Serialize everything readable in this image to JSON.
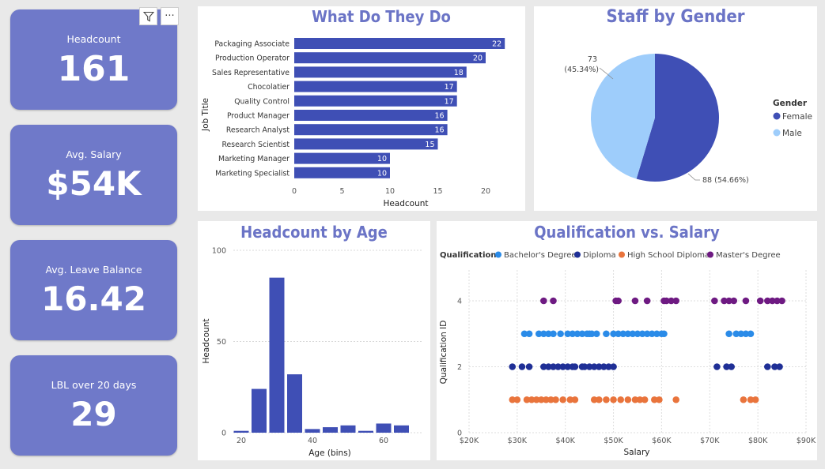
{
  "kpis": [
    {
      "label": "Headcount",
      "value": "161"
    },
    {
      "label": "Avg. Salary",
      "value": "$54K"
    },
    {
      "label": "Avg. Leave Balance",
      "value": "16.42"
    },
    {
      "label": "LBL over 20 days",
      "value": "29"
    }
  ],
  "toolbar": {
    "filter_icon": "filter-icon",
    "more_icon": "more-options-icon",
    "more_glyph": "···"
  },
  "colors": {
    "bar": "#3f4fb5",
    "female": "#3f4fb5",
    "male": "#9ecdfb",
    "bachelor": "#2a8be8",
    "diploma": "#1f2f96",
    "highschool": "#e9743c",
    "master": "#6e1a82",
    "title": "#6b74c6"
  },
  "chart_data": [
    {
      "type": "bar",
      "orientation": "horizontal",
      "title": "What Do They Do",
      "xlabel": "Headcount",
      "ylabel": "Job Title",
      "xlim": [
        0,
        22
      ],
      "xticks": [
        "0",
        "5",
        "10",
        "15",
        "20"
      ],
      "categories": [
        "Packaging Associate",
        "Production Operator",
        "Sales Representative",
        "Chocolatier",
        "Quality Control",
        "Product Manager",
        "Research Analyst",
        "Research Scientist",
        "Marketing Manager",
        "Marketing Specialist"
      ],
      "values": [
        22,
        20,
        18,
        17,
        17,
        16,
        16,
        15,
        10,
        10
      ]
    },
    {
      "type": "pie",
      "title": "Staff by Gender",
      "legend_title": "Gender",
      "legend_position": "right",
      "slices": [
        {
          "label": "Female",
          "value": 88,
          "display": "88 (54.66%)"
        },
        {
          "label": "Male",
          "value": 73,
          "display_count": "73",
          "display_pct": "(45.34%)"
        }
      ]
    },
    {
      "type": "bar",
      "title": "Headcount by Age",
      "xlabel": "Age (bins)",
      "ylabel": "Headcount",
      "ylim": [
        0,
        100
      ],
      "yticks": [
        "0",
        "50",
        "100"
      ],
      "xticks": [
        "20",
        "40",
        "60"
      ],
      "bin_width": 5,
      "bins": [
        20,
        25,
        30,
        35,
        40,
        45,
        50,
        55,
        60,
        65
      ],
      "values": [
        1,
        24,
        85,
        32,
        2,
        3,
        4,
        1,
        5,
        4
      ]
    },
    {
      "type": "scatter",
      "title": "Qualification vs. Salary",
      "xlabel": "Salary",
      "ylabel": "Qualification ID",
      "legend_title": "Qualification",
      "legend_position": "top-left",
      "xlim": [
        20000,
        90000
      ],
      "ylim": [
        0,
        4.9
      ],
      "xticks": [
        "$20K",
        "$30K",
        "$40K",
        "$50K",
        "$60K",
        "$70K",
        "$80K",
        "$90K"
      ],
      "yticks": [
        "0",
        "2",
        "4"
      ],
      "series": [
        {
          "name": "Bachelor's Degree",
          "y": 3,
          "x": [
            31500,
            32500,
            34500,
            35500,
            36500,
            37500,
            39000,
            40500,
            41500,
            42500,
            43500,
            44500,
            45000,
            45500,
            46500,
            48500,
            50000,
            51000,
            52000,
            53000,
            54000,
            55000,
            56000,
            57000,
            58000,
            59000,
            60000,
            60500,
            74000,
            75500,
            76500,
            77500,
            78500
          ]
        },
        {
          "name": "Diploma",
          "y": 2,
          "x": [
            29000,
            31000,
            32500,
            35500,
            36500,
            37500,
            38500,
            39500,
            40500,
            41500,
            42000,
            43500,
            44000,
            45000,
            46000,
            47000,
            48000,
            49000,
            50000,
            71500,
            73500,
            74500,
            82000,
            83500,
            84500
          ]
        },
        {
          "name": "High School Diploma",
          "y": 1,
          "x": [
            29000,
            30000,
            32000,
            33000,
            34000,
            35000,
            36000,
            37000,
            38000,
            39500,
            41000,
            42000,
            46000,
            47000,
            48500,
            50000,
            51500,
            53000,
            54500,
            55500,
            56500,
            58500,
            59500,
            63000,
            77000,
            78500,
            79500
          ]
        },
        {
          "name": "Master's Degree",
          "y": 4,
          "x": [
            35500,
            37500,
            50500,
            51000,
            54500,
            57000,
            60500,
            61000,
            62000,
            63000,
            71000,
            73000,
            74000,
            75000,
            77500,
            80500,
            82000,
            83000,
            84000,
            85000
          ]
        }
      ]
    }
  ]
}
